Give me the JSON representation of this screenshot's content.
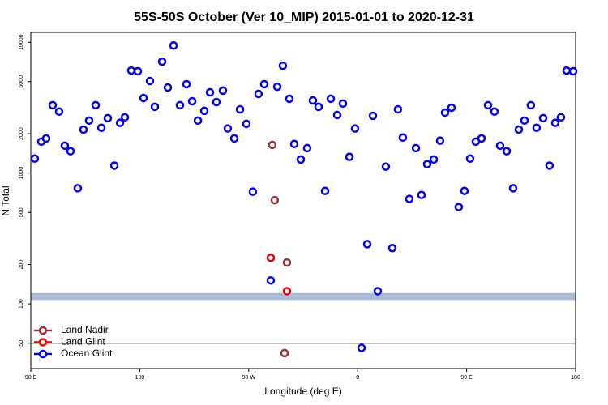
{
  "chart_data": {
    "type": "scatter",
    "title": "55S-50S October (Ver 10_MIP)   2015-01-01 to 2020-12-31",
    "x_label": "Longitude (deg E)",
    "y_label": "N Total",
    "log_y": true,
    "xlim": [
      90,
      540
    ],
    "ylim": [
      32,
      11900
    ],
    "xticks": [
      {
        "value": 90,
        "label": "90 E"
      },
      180,
      {
        "value": 270,
        "label": "90 W"
      },
      {
        "value": 360,
        "label": "0"
      },
      {
        "value": 450,
        "label": "90 E"
      },
      {
        "value": 540,
        "label": "180"
      }
    ],
    "yticks": [
      50,
      100,
      200,
      500,
      1000,
      2000,
      5000,
      10000
    ],
    "reference_line": 50,
    "band_range": [
      107,
      121
    ],
    "band_color": "#a8bcd9",
    "legend": "lower left",
    "series": [
      {
        "name": "Land Nadir",
        "color": "#993333",
        "x": [
          289.5,
          291.5,
          301.6,
          299.6
        ],
        "values": [
          1640,
          620,
          207,
          42
        ]
      },
      {
        "name": "Land Glint",
        "color": "#ee0000",
        "x": [
          288.2,
          301.6
        ],
        "values": [
          225,
          125
        ]
      },
      {
        "name": "Ocean Glint",
        "color": "#0000ee",
        "x": [
          93.3,
          98.7,
          102.7,
          108.1,
          113.4,
          118.1,
          122.8,
          128.8,
          133.5,
          138.2,
          143.6,
          148.3,
          153.6,
          159.0,
          163.7,
          167.7,
          173.0,
          178.4,
          183.1,
          188.4,
          192.5,
          198.5,
          203.2,
          207.9,
          213.2,
          218.6,
          223.3,
          228.0,
          233.3,
          238.0,
          243.3,
          248.7,
          252.7,
          258.1,
          262.8,
          268.1,
          273.4,
          278.1,
          282.8,
          288.2,
          293.6,
          298.2,
          303.6,
          307.6,
          313.0,
          318.3,
          323.0,
          327.7,
          333.1,
          337.8,
          343.1,
          347.8,
          353.2,
          357.8,
          363.2,
          367.9,
          372.6,
          376.6,
          383.3,
          388.6,
          393.3,
          397.3,
          402.7,
          408.1,
          412.7,
          417.4,
          422.8,
          428.1,
          432.2,
          437.5,
          443.5,
          448.2,
          452.9,
          457.6,
          462.3,
          467.7,
          473.0,
          477.7,
          483.1,
          488.4,
          493.1,
          497.8,
          503.1,
          507.8,
          513.2,
          518.5,
          523.2,
          527.9,
          532.6,
          538.0
        ],
        "values": [
          1290,
          1740,
          1840,
          3300,
          2950,
          1620,
          1470,
          765,
          2150,
          2520,
          3300,
          2220,
          2630,
          1140,
          2420,
          2670,
          6080,
          6000,
          3750,
          5060,
          3210,
          7110,
          4510,
          9440,
          3300,
          4780,
          3540,
          2520,
          2990,
          4140,
          3490,
          4270,
          2190,
          1840,
          3070,
          2380,
          720,
          4030,
          4780,
          151,
          4570,
          6620,
          3700,
          1670,
          1270,
          1550,
          3590,
          3210,
          730,
          3700,
          2780,
          3400,
          1330,
          2190,
          46,
          286,
          2740,
          125,
          1120,
          267,
          3070,
          1870,
          634,
          1550,
          680,
          1170,
          1270,
          1770,
          2900,
          3160,
          550,
          730,
          1290,
          1740,
          1840,
          3300,
          2950,
          1620,
          1470,
          765,
          2150,
          2520,
          3300,
          2220,
          2630,
          1140,
          2420,
          2670,
          6080,
          6000
        ]
      }
    ]
  }
}
